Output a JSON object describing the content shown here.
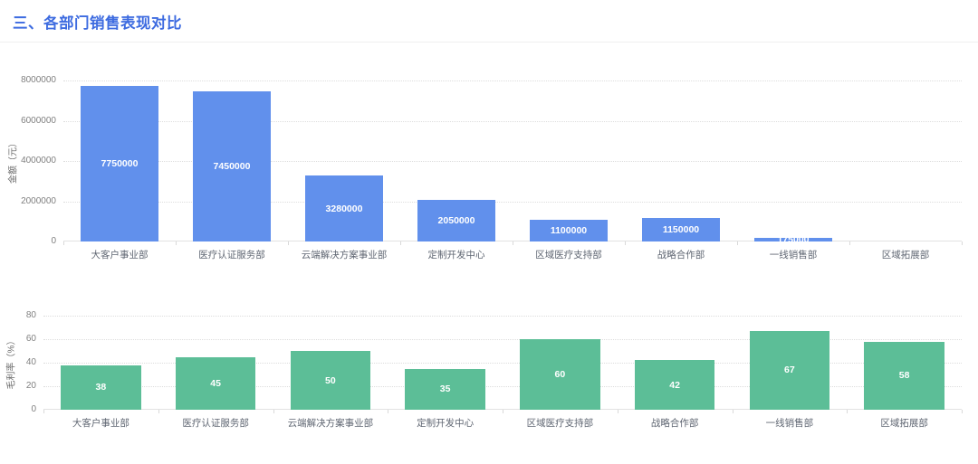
{
  "page": {
    "title": "三、各部门销售表现对比",
    "accent_color": "#3d6be0",
    "background_color": "#ffffff"
  },
  "chart_data": [
    {
      "type": "bar",
      "name": "department-sales-amount",
      "title": "",
      "xlabel": "",
      "ylabel": "金额（元）",
      "ylim": [
        0,
        8000000
      ],
      "yticks": [
        0,
        2000000,
        4000000,
        6000000,
        8000000
      ],
      "grid": true,
      "legend_position": "none",
      "bar_color": "#6190ec",
      "value_label_color": "#ffffff",
      "categories": [
        "大客户事业部",
        "医疗认证服务部",
        "云端解决方案事业部",
        "定制开发中心",
        "区域医疗支持部",
        "战略合作部",
        "一线销售部",
        "区域拓展部"
      ],
      "values": [
        7750000,
        7450000,
        3280000,
        2050000,
        1100000,
        1150000,
        175000,
        0
      ]
    },
    {
      "type": "bar",
      "name": "department-margin-rate",
      "title": "",
      "xlabel": "",
      "ylabel": "毛利率（%）",
      "ylim": [
        0,
        80
      ],
      "yticks": [
        0,
        20,
        40,
        60,
        80
      ],
      "grid": true,
      "legend_position": "none",
      "bar_color": "#5cbe97",
      "value_label_color": "#ffffff",
      "categories": [
        "大客户事业部",
        "医疗认证服务部",
        "云端解决方案事业部",
        "定制开发中心",
        "区域医疗支持部",
        "战略合作部",
        "一线销售部",
        "区域拓展部"
      ],
      "values": [
        38,
        45,
        50,
        35,
        60,
        42,
        67,
        58
      ]
    }
  ]
}
